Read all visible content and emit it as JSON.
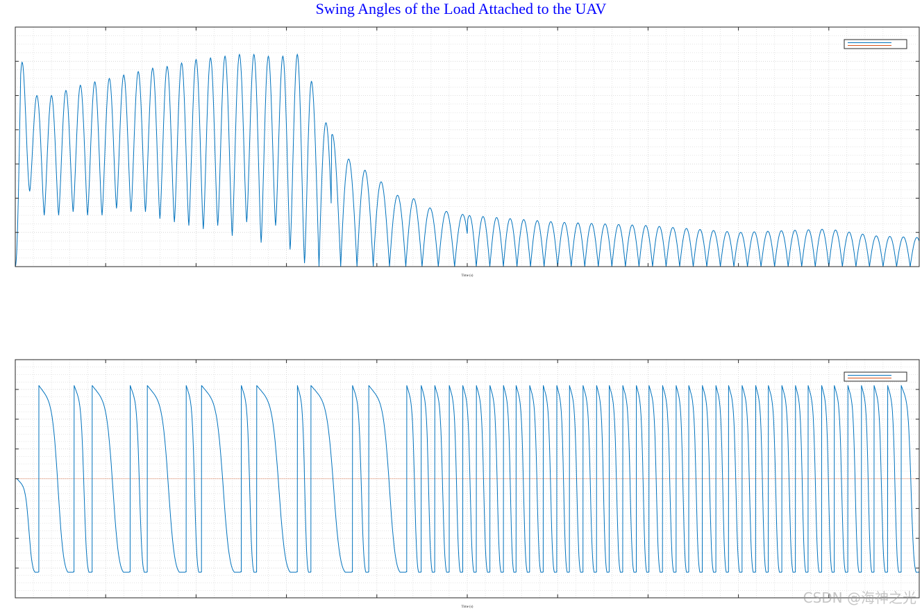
{
  "figure": {
    "title": "Swing Angles of the Load Attached to the UAV",
    "watermark": "CSDN @海神之光",
    "colors": {
      "title": "#0000ff",
      "series": "#0072bd",
      "reference": "#d95319",
      "grid": "#c8c8c8"
    }
  },
  "chart_data": [
    {
      "type": "line",
      "xlabel": "Time (s)",
      "ylabel": "",
      "grid": true,
      "legend_placement": "top-right",
      "xlim": [
        0,
        100
      ],
      "ylim": [
        0,
        7
      ],
      "series": [
        {
          "color": "#0072bd",
          "shape": "rectified_oscillation",
          "x": [
            0,
            1.6,
            3.2,
            4.8,
            6.4,
            8.0,
            9.6,
            11.2,
            12.8,
            14.4,
            16.0,
            17.6,
            19.2,
            20.8,
            22.4,
            24.0,
            25.6,
            27.2,
            28.8,
            30.4,
            32.0,
            33.6,
            35.0,
            36.6,
            38.2,
            40.0,
            42.0,
            44.0,
            46.0,
            48.0,
            50.0,
            55.0,
            60.0,
            65.0,
            70.0,
            75.0,
            80.0,
            85.0,
            90.0,
            95.0,
            100.0
          ],
          "peaks": [
            6.8,
            5.1,
            4.9,
            5.1,
            5.2,
            5.4,
            5.4,
            5.6,
            5.6,
            5.8,
            5.8,
            5.9,
            6.0,
            6.1,
            6.1,
            6.2,
            6.2,
            6.2,
            6.1,
            6.2,
            6.2,
            4.6,
            3.9,
            3.2,
            2.9,
            2.6,
            2.1,
            2.0,
            1.7,
            1.6,
            1.5,
            1.4,
            1.3,
            1.25,
            1.2,
            1.1,
            1.0,
            1.05,
            1.1,
            0.9,
            0.85
          ],
          "troughs": [
            0.3,
            2.2,
            1.5,
            1.5,
            1.6,
            1.5,
            1.5,
            1.7,
            1.6,
            1.6,
            1.4,
            1.3,
            1.2,
            1.1,
            1.2,
            0.9,
            1.3,
            0.7,
            1.2,
            0.5,
            0.1,
            0,
            0,
            0,
            0,
            0,
            0,
            0,
            0,
            0,
            0,
            0,
            0,
            0,
            0,
            0,
            0,
            0,
            0,
            0,
            0
          ]
        },
        {
          "color": "#d95319",
          "shape": "constant",
          "value": 0
        }
      ]
    },
    {
      "type": "line",
      "xlabel": "Time (s)",
      "ylabel": "",
      "grid": true,
      "legend_placement": "top-right",
      "xlim": [
        0,
        100
      ],
      "ylim": [
        -4,
        4
      ],
      "series": [
        {
          "color": "#0072bd",
          "shape": "wrapped_phase",
          "wrap_range": [
            -3.14,
            3.14
          ],
          "wrap_times": [
            2.6,
            6.5,
            8.5,
            12.7,
            14.6,
            18.9,
            20.6,
            25.0,
            26.7,
            31.2,
            32.7,
            37.3,
            39.1,
            43.3,
            44.9,
            46.4,
            48.0,
            49.5,
            51.0,
            52.5,
            54.0,
            55.4,
            56.9,
            58.4,
            59.9,
            61.3,
            62.8,
            64.3,
            65.7,
            67.2,
            68.7,
            70.1,
            71.6,
            73.1,
            74.5,
            76.0,
            77.5,
            78.9,
            80.4,
            81.9,
            83.3,
            84.8,
            86.3,
            87.7,
            89.2,
            90.6,
            92.1,
            93.6,
            95.0,
            96.5,
            98.0
          ]
        },
        {
          "color": "#d95319",
          "shape": "constant",
          "value": 0
        }
      ]
    }
  ]
}
